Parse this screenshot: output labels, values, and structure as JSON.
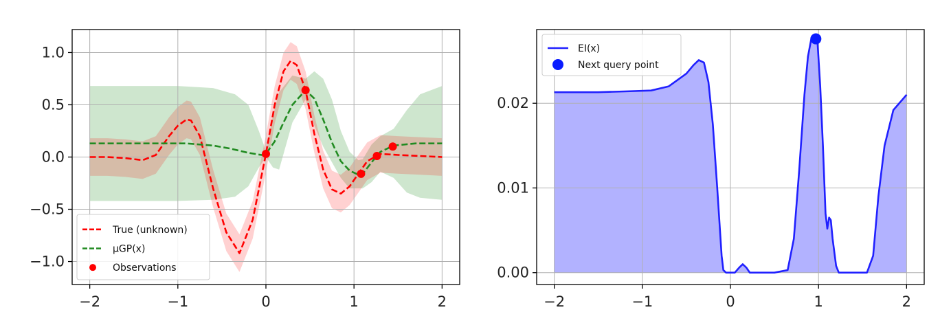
{
  "chart_data": [
    {
      "type": "line",
      "title": "",
      "xlabel": "",
      "ylabel": "",
      "xlim": [
        -2.2,
        2.2
      ],
      "ylim": [
        -1.22,
        1.22
      ],
      "grid": true,
      "legend_placement": "lower-left",
      "x_ticks": [
        -2,
        -1,
        0,
        1,
        2
      ],
      "x_tick_labels": [
        "−2",
        "−1",
        "0",
        "1",
        "2"
      ],
      "y_ticks": [
        -1.0,
        -0.5,
        0.0,
        0.5,
        1.0
      ],
      "y_tick_labels": [
        "−1.0",
        "−0.5",
        "0.0",
        "0.5",
        "1.0"
      ],
      "series": [
        {
          "name": "True (unknown)",
          "kind": "line",
          "style": "dashed",
          "color": "#ff0000",
          "x": [
            -2.0,
            -1.8,
            -1.6,
            -1.4,
            -1.25,
            -1.1,
            -1.0,
            -0.9,
            -0.85,
            -0.75,
            -0.6,
            -0.45,
            -0.3,
            -0.15,
            0.0,
            0.1,
            0.2,
            0.28,
            0.35,
            0.45,
            0.55,
            0.65,
            0.75,
            0.85,
            0.95,
            1.05,
            1.15,
            1.3,
            1.5,
            1.75,
            2.0
          ],
          "y": [
            0.0,
            0.0,
            -0.01,
            -0.03,
            0.02,
            0.2,
            0.3,
            0.36,
            0.35,
            0.2,
            -0.3,
            -0.72,
            -0.92,
            -0.6,
            0.03,
            0.5,
            0.82,
            0.92,
            0.88,
            0.64,
            0.22,
            -0.12,
            -0.31,
            -0.35,
            -0.28,
            -0.16,
            -0.04,
            0.03,
            0.02,
            0.01,
            0.0
          ]
        },
        {
          "name": "μGP(x)",
          "kind": "line",
          "style": "dashed",
          "color": "#228b22",
          "x": [
            -2.0,
            -1.6,
            -1.2,
            -0.9,
            -0.6,
            -0.4,
            -0.2,
            -0.05,
            0.0,
            0.1,
            0.2,
            0.3,
            0.45,
            0.55,
            0.65,
            0.75,
            0.85,
            0.95,
            1.05,
            1.1,
            1.2,
            1.3,
            1.45,
            1.7,
            2.0
          ],
          "y": [
            0.13,
            0.13,
            0.13,
            0.13,
            0.11,
            0.08,
            0.04,
            0.02,
            0.03,
            0.15,
            0.33,
            0.5,
            0.64,
            0.56,
            0.36,
            0.14,
            -0.04,
            -0.13,
            -0.17,
            -0.16,
            -0.05,
            0.05,
            0.11,
            0.13,
            0.13
          ]
        },
        {
          "name": "Observations",
          "kind": "scatter",
          "color": "#ff0000",
          "x": [
            0.0,
            0.45,
            1.08,
            1.26,
            1.44
          ],
          "y": [
            0.03,
            0.64,
            -0.16,
            0.01,
            0.1
          ]
        }
      ],
      "bands": [
        {
          "color": "#228b22",
          "alpha": 0.22,
          "x": [
            -2.0,
            -1.0,
            -0.6,
            -0.35,
            -0.2,
            -0.08,
            0.0,
            0.08,
            0.15,
            0.3,
            0.45,
            0.55,
            0.65,
            0.75,
            0.85,
            0.95,
            1.05,
            1.1,
            1.2,
            1.3,
            1.45,
            1.6,
            1.75,
            2.0
          ],
          "lower": [
            -0.42,
            -0.42,
            -0.41,
            -0.38,
            -0.28,
            -0.1,
            0.0,
            -0.1,
            -0.12,
            0.33,
            0.55,
            0.3,
            0.1,
            -0.05,
            -0.2,
            -0.3,
            -0.3,
            -0.3,
            -0.24,
            -0.14,
            -0.2,
            -0.34,
            -0.39,
            -0.41
          ],
          "upper": [
            0.68,
            0.68,
            0.66,
            0.6,
            0.5,
            0.25,
            0.06,
            0.4,
            0.62,
            0.78,
            0.75,
            0.82,
            0.75,
            0.55,
            0.25,
            0.05,
            -0.03,
            -0.02,
            0.12,
            0.2,
            0.27,
            0.45,
            0.6,
            0.68
          ]
        },
        {
          "color": "#ff0000",
          "alpha": 0.18,
          "x": [
            -2.0,
            -1.8,
            -1.6,
            -1.4,
            -1.25,
            -1.1,
            -1.0,
            -0.9,
            -0.85,
            -0.75,
            -0.6,
            -0.45,
            -0.3,
            -0.15,
            0.0,
            0.1,
            0.2,
            0.28,
            0.35,
            0.45,
            0.55,
            0.65,
            0.75,
            0.85,
            0.95,
            1.05,
            1.15,
            1.3,
            1.5,
            1.75,
            2.0
          ],
          "lower": [
            -0.18,
            -0.18,
            -0.19,
            -0.21,
            -0.16,
            0.02,
            0.12,
            0.18,
            0.17,
            0.02,
            -0.48,
            -0.9,
            -1.1,
            -0.78,
            -0.15,
            0.32,
            0.64,
            0.74,
            0.7,
            0.46,
            0.04,
            -0.3,
            -0.49,
            -0.53,
            -0.46,
            -0.34,
            -0.22,
            -0.15,
            -0.16,
            -0.17,
            -0.18
          ],
          "upper": [
            0.18,
            0.18,
            0.17,
            0.15,
            0.2,
            0.38,
            0.48,
            0.54,
            0.53,
            0.38,
            -0.12,
            -0.54,
            -0.74,
            -0.42,
            0.21,
            0.68,
            1.0,
            1.1,
            1.06,
            0.82,
            0.4,
            0.06,
            -0.13,
            -0.17,
            -0.1,
            0.02,
            0.14,
            0.21,
            0.2,
            0.19,
            0.18
          ]
        }
      ]
    },
    {
      "type": "area",
      "title": "",
      "xlabel": "",
      "ylabel": "",
      "xlim": [
        -2.2,
        2.2
      ],
      "ylim": [
        -0.0014,
        0.0287
      ],
      "grid": true,
      "legend_placement": "upper-left",
      "x_ticks": [
        -2,
        -1,
        0,
        1,
        2
      ],
      "x_tick_labels": [
        "−2",
        "−1",
        "0",
        "1",
        "2"
      ],
      "y_ticks": [
        0.0,
        0.01,
        0.02
      ],
      "y_tick_labels": [
        "0.00",
        "0.01",
        "0.02"
      ],
      "series": [
        {
          "name": "EI(x)",
          "kind": "line",
          "color": "#2020ff",
          "fill_color": "#6666ff",
          "fill_alpha": 0.5,
          "x": [
            -2.0,
            -1.5,
            -1.2,
            -0.9,
            -0.7,
            -0.5,
            -0.42,
            -0.36,
            -0.3,
            -0.25,
            -0.2,
            -0.15,
            -0.1,
            -0.08,
            -0.05,
            0.0,
            0.05,
            0.1,
            0.14,
            0.18,
            0.22,
            0.3,
            0.5,
            0.65,
            0.72,
            0.78,
            0.84,
            0.88,
            0.92,
            0.96,
            0.99,
            1.02,
            1.05,
            1.08,
            1.1,
            1.12,
            1.14,
            1.16,
            1.2,
            1.23,
            1.3,
            1.45,
            1.55,
            1.62,
            1.68,
            1.75,
            1.85,
            2.0
          ],
          "y": [
            0.0213,
            0.0213,
            0.0214,
            0.0215,
            0.022,
            0.0235,
            0.0245,
            0.0251,
            0.0248,
            0.0225,
            0.0175,
            0.01,
            0.002,
            0.0003,
            0.0,
            0.0,
            0.0,
            0.0006,
            0.001,
            0.0006,
            0.0,
            0.0,
            0.0,
            0.0003,
            0.004,
            0.012,
            0.021,
            0.0255,
            0.0277,
            0.0277,
            0.027,
            0.022,
            0.015,
            0.007,
            0.0052,
            0.0065,
            0.0062,
            0.004,
            0.0008,
            0.0,
            0.0,
            0.0,
            0.0,
            0.002,
            0.009,
            0.015,
            0.0192,
            0.021
          ]
        },
        {
          "name": "Next query point",
          "kind": "scatter",
          "color": "#0a1cff",
          "x": [
            0.97
          ],
          "y": [
            0.0276
          ]
        }
      ]
    }
  ]
}
